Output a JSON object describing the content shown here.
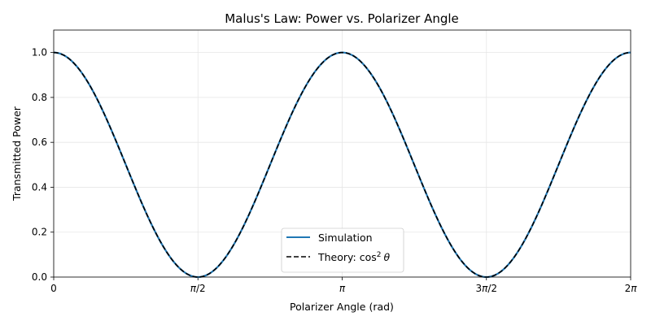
{
  "chart_data": {
    "type": "line",
    "title": "Malus's Law: Power vs. Polarizer Angle",
    "xlabel": "Polarizer Angle (rad)",
    "ylabel": "Transmitted Power",
    "xlim": [
      0,
      6.283185307179586
    ],
    "ylim": [
      0,
      1.1
    ],
    "grid": true,
    "legend_position": "lower center",
    "x_ticks": [
      {
        "value": 0,
        "label": "0"
      },
      {
        "value": 1.5707963267948966,
        "label": "π/2",
        "sym": "π",
        "rest": "/2"
      },
      {
        "value": 3.141592653589793,
        "label": "π",
        "sym": "π",
        "rest": ""
      },
      {
        "value": 4.71238898038469,
        "label": "3π/2",
        "pre": "3",
        "sym": "π",
        "rest": "/2"
      },
      {
        "value": 6.283185307179586,
        "label": "2π",
        "pre": "2",
        "sym": "π",
        "rest": ""
      }
    ],
    "y_ticks": [
      {
        "value": 0.0,
        "label": "0.0"
      },
      {
        "value": 0.2,
        "label": "0.2"
      },
      {
        "value": 0.4,
        "label": "0.4"
      },
      {
        "value": 0.6,
        "label": "0.6"
      },
      {
        "value": 0.8,
        "label": "0.8"
      },
      {
        "value": 1.0,
        "label": "1.0"
      }
    ],
    "series": [
      {
        "name": "Simulation",
        "function": "cos^2(theta)",
        "color": "#1f77b4",
        "style": "solid",
        "x": [
          0,
          0.3927,
          0.7854,
          1.1781,
          1.5708,
          1.9635,
          2.3562,
          2.7489,
          3.1416,
          3.5343,
          3.927,
          4.3197,
          4.7124,
          5.1051,
          5.4978,
          5.8905,
          6.2832
        ],
        "y": [
          1.0,
          0.8536,
          0.5,
          0.1464,
          0.0,
          0.1464,
          0.5,
          0.8536,
          1.0,
          0.8536,
          0.5,
          0.1464,
          0.0,
          0.1464,
          0.5,
          0.8536,
          1.0
        ]
      },
      {
        "name": "Theory: cos² θ",
        "function": "cos^2(theta)",
        "color": "#000000",
        "style": "dashed",
        "x": [
          0,
          0.3927,
          0.7854,
          1.1781,
          1.5708,
          1.9635,
          2.3562,
          2.7489,
          3.1416,
          3.5343,
          3.927,
          4.3197,
          4.7124,
          5.1051,
          5.4978,
          5.8905,
          6.2832
        ],
        "y": [
          1.0,
          0.8536,
          0.5,
          0.1464,
          0.0,
          0.1464,
          0.5,
          0.8536,
          1.0,
          0.8536,
          0.5,
          0.1464,
          0.0,
          0.1464,
          0.5,
          0.8536,
          1.0
        ]
      }
    ],
    "legend": {
      "simulation_label": "Simulation",
      "theory_label": "Theory: cos",
      "theory_sup": "2",
      "theory_var": "θ"
    }
  }
}
